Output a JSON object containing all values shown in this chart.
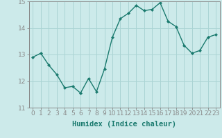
{
  "x": [
    0,
    1,
    2,
    3,
    4,
    5,
    6,
    7,
    8,
    9,
    10,
    11,
    12,
    13,
    14,
    15,
    16,
    17,
    18,
    19,
    20,
    21,
    22,
    23
  ],
  "y": [
    12.9,
    13.05,
    12.6,
    12.25,
    11.75,
    11.8,
    11.55,
    12.1,
    11.6,
    12.45,
    13.65,
    14.35,
    14.55,
    14.85,
    14.65,
    14.7,
    14.95,
    14.25,
    14.05,
    13.35,
    13.05,
    13.15,
    13.65,
    13.75
  ],
  "line_color": "#1a7a6e",
  "marker": "D",
  "marker_size": 2.2,
  "bg_color": "#cceaea",
  "grid_color": "#aad4d4",
  "xlabel": "Humidex (Indice chaleur)",
  "ylim": [
    11,
    15
  ],
  "xlim_min": -0.5,
  "xlim_max": 23.5,
  "yticks": [
    11,
    12,
    13,
    14,
    15
  ],
  "xticks": [
    0,
    1,
    2,
    3,
    4,
    5,
    6,
    7,
    8,
    9,
    10,
    11,
    12,
    13,
    14,
    15,
    16,
    17,
    18,
    19,
    20,
    21,
    22,
    23
  ],
  "xlabel_fontsize": 7.5,
  "tick_fontsize": 6.5,
  "line_width": 1.0,
  "label_color": "#1a7a6e",
  "axis_color": "#888888"
}
